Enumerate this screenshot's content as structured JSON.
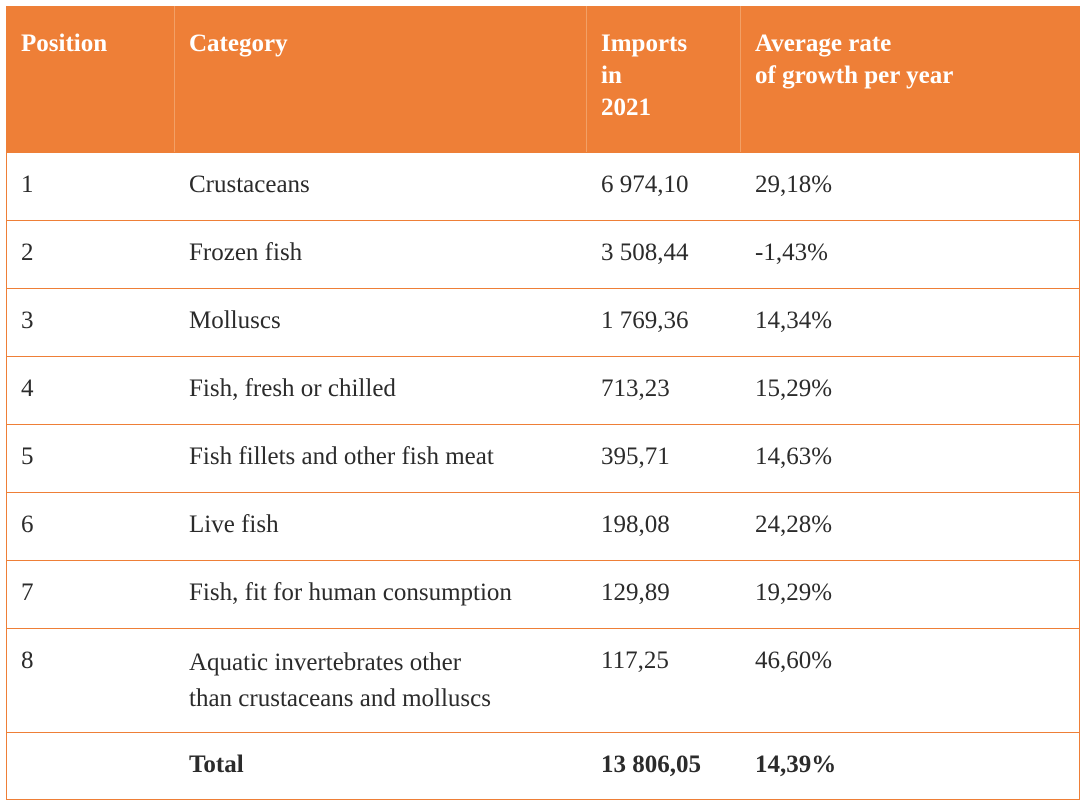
{
  "table": {
    "headers": {
      "position": "Position",
      "category": "Category",
      "imports": "Imports\nin\n2021",
      "growth": "Average rate\nof growth per year"
    },
    "rows": [
      {
        "position": "1",
        "category": "Crustaceans",
        "imports": "6 974,10",
        "growth": "29,18%"
      },
      {
        "position": "2",
        "category": "Frozen fish",
        "imports": "3 508,44",
        "growth": "-1,43%"
      },
      {
        "position": "3",
        "category": "Molluscs",
        "imports": "1 769,36",
        "growth": "14,34%"
      },
      {
        "position": "4",
        "category": "Fish, fresh or chilled",
        "imports": "713,23",
        "growth": "15,29%"
      },
      {
        "position": "5",
        "category": "Fish fillets and other fish meat",
        "imports": "395,71",
        "growth": "14,63%"
      },
      {
        "position": "6",
        "category": "Live fish",
        "imports": "198,08",
        "growth": "24,28%"
      },
      {
        "position": "7",
        "category": "Fish, fit for human consumption",
        "imports": "129,89",
        "growth": "19,29%"
      },
      {
        "position": "8",
        "category": "Aquatic invertebrates other\nthan crustaceans and molluscs",
        "imports": "117,25",
        "growth": "46,60%"
      }
    ],
    "total": {
      "position": "",
      "category": "Total",
      "imports": "13 806,05",
      "growth": "14,39%"
    }
  },
  "colors": {
    "header_background": "#ee7f37",
    "header_text": "#ffffff",
    "border": "#ee7f37"
  }
}
